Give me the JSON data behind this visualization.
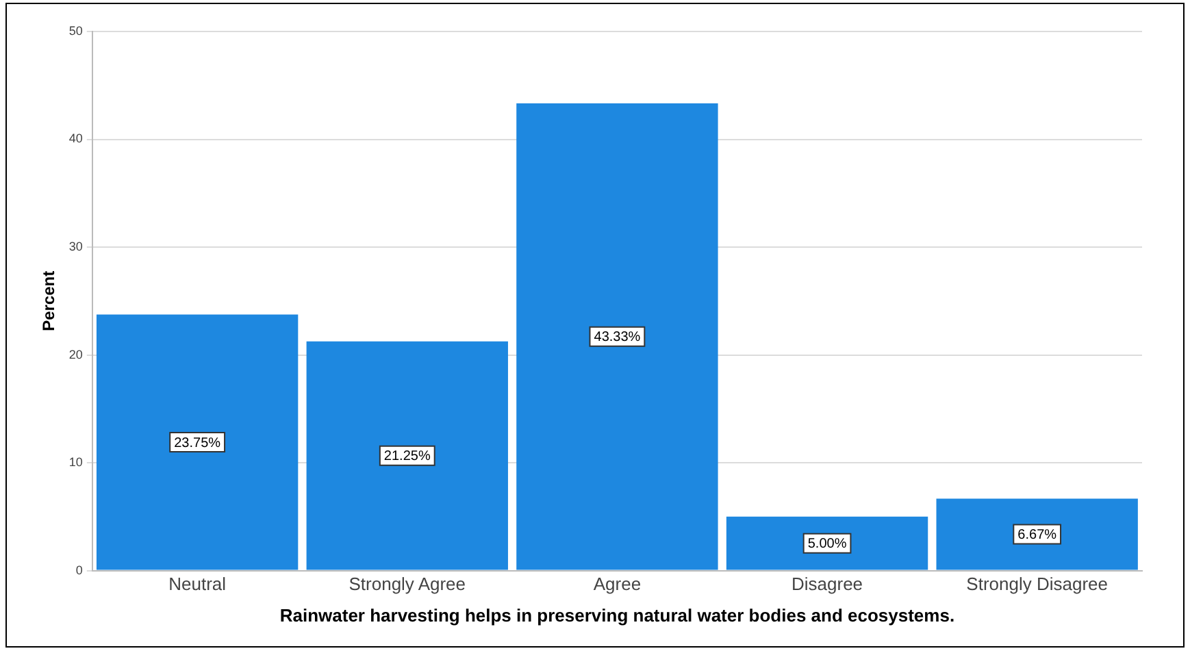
{
  "chart_data": {
    "type": "bar",
    "xlabel": "Rainwater harvesting helps in preserving natural water bodies and ecosystems.",
    "ylabel": "Percent",
    "categories": [
      "Neutral",
      "Strongly Agree",
      "Agree",
      "Disagree",
      "Strongly Disagree"
    ],
    "values": [
      23.75,
      21.25,
      43.33,
      5.0,
      6.67
    ],
    "value_labels": [
      "23.75%",
      "21.25%",
      "43.33%",
      "5.00%",
      "6.67%"
    ],
    "color": "#1e88e0",
    "ylim": [
      0,
      50
    ],
    "yticks": [
      0,
      10,
      20,
      30,
      40,
      50
    ],
    "grid": "y",
    "legend": false
  }
}
